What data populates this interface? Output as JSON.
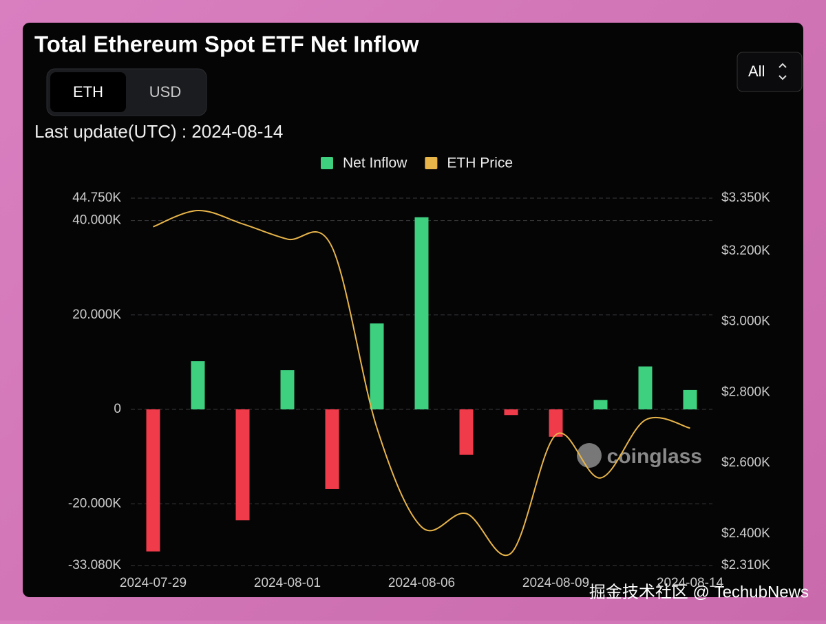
{
  "header": {
    "title": "Total Ethereum Spot ETF Net Inflow",
    "toggle": [
      "ETH",
      "USD"
    ],
    "range": "All",
    "last_update": "Last update(UTC) : 2024-08-14"
  },
  "watermark": "coinglass",
  "footer": "掘金技术社区 @ TechubNews",
  "chart_data": {
    "type": "bar",
    "categories": [
      "2024-07-29",
      null,
      null,
      "2024-08-01",
      null,
      null,
      "2024-08-06",
      null,
      null,
      "2024-08-09",
      null,
      null,
      "2024-08-14"
    ],
    "series": [
      {
        "name": "Net Inflow",
        "type": "bar",
        "color": "#3ecf7f",
        "negative_color": "#ef3b4a",
        "values": [
          -30.1,
          10.2,
          -23.5,
          8.3,
          -16.9,
          18.2,
          40.7,
          -9.6,
          -1.2,
          -5.8,
          2.0,
          9.1,
          4.1
        ]
      },
      {
        "name": "ETH Price",
        "type": "line",
        "axis": "y2",
        "color": "#e8b54a",
        "values": [
          3.269,
          3.315,
          3.277,
          3.234,
          3.211,
          2.7,
          2.419,
          2.457,
          2.345,
          2.68,
          2.558,
          2.722,
          2.699
        ]
      }
    ],
    "ylim": [
      -33.08,
      44.75
    ],
    "yticks": [
      {
        "value": -33.08,
        "label": "-33.080K"
      },
      {
        "value": -20,
        "label": "-20.000K"
      },
      0,
      {
        "value": 20,
        "label": "20.000K"
      },
      {
        "value": 40,
        "label": "40.000K"
      },
      {
        "value": 44.75,
        "label": "44.750K"
      }
    ],
    "y2lim": [
      2.31,
      3.35
    ],
    "y2ticks": [
      {
        "value": 2.31,
        "label": "$2.310K"
      },
      {
        "value": 2.4,
        "label": "$2.400K"
      },
      {
        "value": 2.6,
        "label": "$2.600K"
      },
      {
        "value": 2.8,
        "label": "$2.800K"
      },
      {
        "value": 3.0,
        "label": "$3.000K"
      },
      {
        "value": 3.2,
        "label": "$3.200K"
      },
      {
        "value": 3.35,
        "label": "$3.350K"
      }
    ],
    "grid": true
  }
}
